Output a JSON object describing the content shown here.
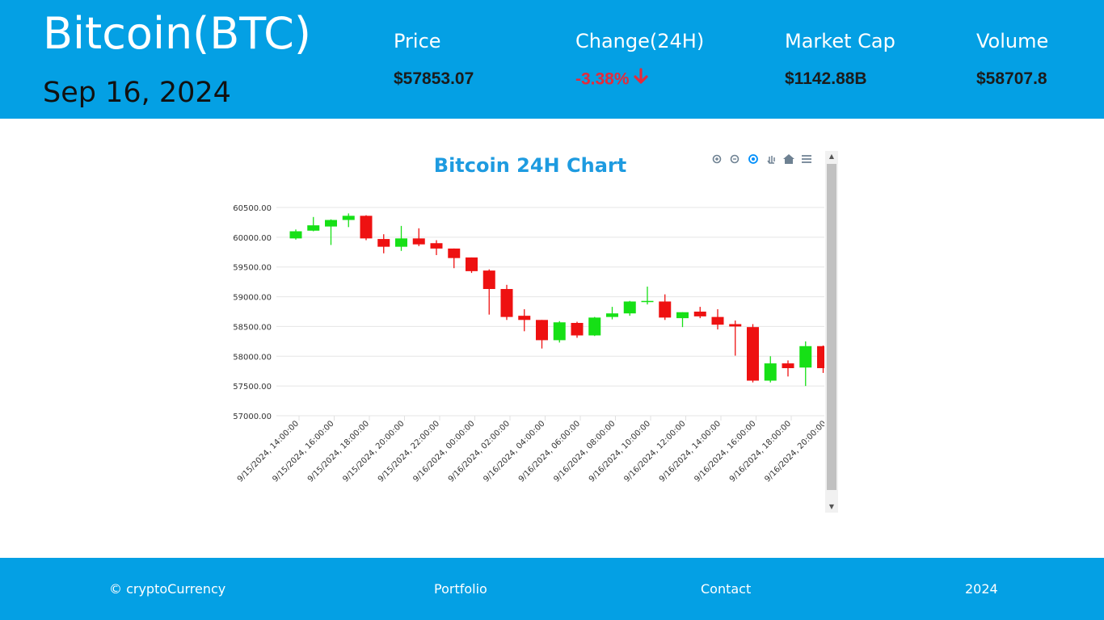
{
  "header": {
    "title": "Bitcoin(BTC)",
    "date": "Sep 16, 2024",
    "stats": {
      "price": {
        "label": "Price",
        "value": "$57853.07"
      },
      "change": {
        "label": "Change(24H)",
        "value": "-3.38%"
      },
      "market_cap": {
        "label": "Market Cap",
        "value": "$1142.88B"
      },
      "volume": {
        "label": "Volume",
        "value": "$58707.8"
      }
    }
  },
  "colors": {
    "brand": "#04a0e4",
    "up": "#16e016",
    "down": "#ee1111",
    "negative_text": "#e52a3a",
    "chart_title": "#1e9be0"
  },
  "toolbar_icons": [
    "zoom-in-icon",
    "zoom-out-icon",
    "zoom-selection-icon",
    "pan-icon",
    "reset-home-icon",
    "menu-icon"
  ],
  "chart_data": {
    "type": "candlestick",
    "title": "Bitcoin 24H Chart",
    "ylim": [
      57000,
      60700
    ],
    "yticks": [
      "60500.00",
      "60000.00",
      "59500.00",
      "59000.00",
      "58500.00",
      "58000.00",
      "57500.00",
      "57000.00"
    ],
    "ytick_values": [
      60500,
      60000,
      59500,
      59000,
      58500,
      58000,
      57500,
      57000
    ],
    "xticks": [
      "9/15/2024, 14:00:00",
      "9/15/2024, 16:00:00",
      "9/15/2024, 18:00:00",
      "9/15/2024, 20:00:00",
      "9/15/2024, 22:00:00",
      "9/16/2024, 00:00:00",
      "9/16/2024, 02:00:00",
      "9/16/2024, 04:00:00",
      "9/16/2024, 06:00:00",
      "9/16/2024, 08:00:00",
      "9/16/2024, 10:00:00",
      "9/16/2024, 12:00:00",
      "9/16/2024, 14:00:00",
      "9/16/2024, 16:00:00",
      "9/16/2024, 18:00:00",
      "9/16/2024, 20:00:00"
    ],
    "candles": [
      {
        "o": 59980,
        "h": 60130,
        "l": 59960,
        "c": 60100
      },
      {
        "o": 60110,
        "h": 60340,
        "l": 60100,
        "c": 60200
      },
      {
        "o": 60180,
        "h": 60300,
        "l": 59870,
        "c": 60290
      },
      {
        "o": 60290,
        "h": 60400,
        "l": 60170,
        "c": 60360
      },
      {
        "o": 60360,
        "h": 60370,
        "l": 59950,
        "c": 59980
      },
      {
        "o": 59970,
        "h": 60050,
        "l": 59730,
        "c": 59840
      },
      {
        "o": 59840,
        "h": 60190,
        "l": 59770,
        "c": 59980
      },
      {
        "o": 59980,
        "h": 60150,
        "l": 59850,
        "c": 59880
      },
      {
        "o": 59900,
        "h": 59950,
        "l": 59700,
        "c": 59810
      },
      {
        "o": 59810,
        "h": 59810,
        "l": 59480,
        "c": 59650
      },
      {
        "o": 59660,
        "h": 59660,
        "l": 59400,
        "c": 59430
      },
      {
        "o": 59440,
        "h": 59460,
        "l": 58700,
        "c": 59130
      },
      {
        "o": 59130,
        "h": 59200,
        "l": 58610,
        "c": 58660
      },
      {
        "o": 58680,
        "h": 58790,
        "l": 58420,
        "c": 58610
      },
      {
        "o": 58610,
        "h": 58610,
        "l": 58130,
        "c": 58270
      },
      {
        "o": 58270,
        "h": 58590,
        "l": 58230,
        "c": 58570
      },
      {
        "o": 58560,
        "h": 58580,
        "l": 58310,
        "c": 58350
      },
      {
        "o": 58350,
        "h": 58660,
        "l": 58340,
        "c": 58650
      },
      {
        "o": 58660,
        "h": 58830,
        "l": 58620,
        "c": 58720
      },
      {
        "o": 58720,
        "h": 58930,
        "l": 58680,
        "c": 58920
      },
      {
        "o": 58920,
        "h": 59170,
        "l": 58870,
        "c": 58930
      },
      {
        "o": 58920,
        "h": 59040,
        "l": 58610,
        "c": 58650
      },
      {
        "o": 58640,
        "h": 58740,
        "l": 58490,
        "c": 58740
      },
      {
        "o": 58750,
        "h": 58830,
        "l": 58640,
        "c": 58670
      },
      {
        "o": 58660,
        "h": 58790,
        "l": 58450,
        "c": 58530
      },
      {
        "o": 58540,
        "h": 58600,
        "l": 58010,
        "c": 58500
      },
      {
        "o": 58490,
        "h": 58540,
        "l": 57560,
        "c": 57590
      },
      {
        "o": 57590,
        "h": 58000,
        "l": 57560,
        "c": 57880
      },
      {
        "o": 57880,
        "h": 57930,
        "l": 57660,
        "c": 57800
      },
      {
        "o": 57810,
        "h": 58250,
        "l": 57500,
        "c": 58170
      },
      {
        "o": 58170,
        "h": 58180,
        "l": 57720,
        "c": 57800
      }
    ]
  },
  "footer": {
    "copyright": "© cryptoCurrency",
    "portfolio": "Portfolio",
    "contact": "Contact",
    "year": "2024"
  }
}
